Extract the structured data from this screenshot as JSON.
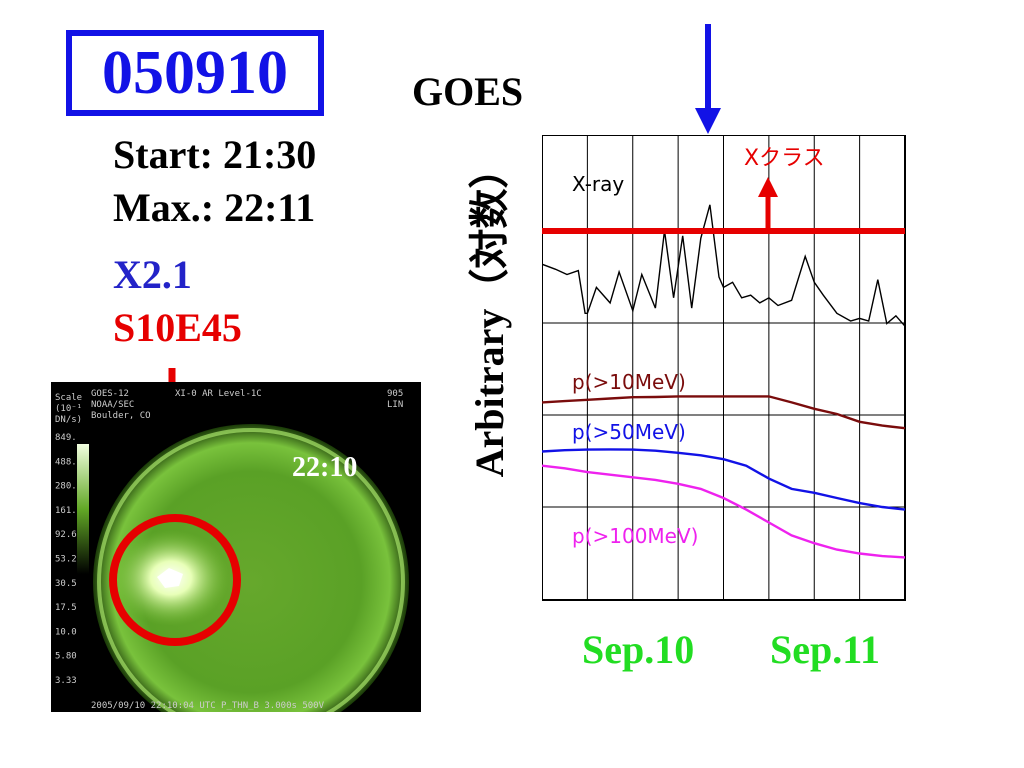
{
  "event": {
    "id": "050910",
    "start": "Start: 21:30",
    "max": "Max.: 22:11",
    "xray_class": "X2.1",
    "location": "S10E45"
  },
  "colors": {
    "blue": "#1212e6",
    "red": "#e60000",
    "green": "#22dd22",
    "darkred": "#7a0c0c",
    "magenta": "#ee22ee"
  },
  "image_panel": {
    "time_label": "22:10",
    "header_left": [
      "GOES-12",
      "NOAA/SEC",
      "Boulder, CO"
    ],
    "header_mid": "XI-0  AR     Level-1C",
    "header_right": [
      "905",
      "LIN"
    ],
    "scale_header": [
      "Scale",
      "(10⁻¹",
      "DN/s)"
    ],
    "scale_values": [
      "849.",
      "488.",
      "280.",
      "161.",
      "92.6",
      "53.2",
      "30.5",
      "17.5",
      "10.0",
      "5.80",
      "3.33"
    ],
    "footer": "2005/09/10 22:10:04 UTC  P_THN_B  3.000s  500V"
  },
  "chart_data": {
    "type": "line",
    "title": "GOES",
    "ylabel": "Arbitrary（対数）",
    "x_labels": [
      "Sep.10",
      "Sep.11"
    ],
    "x_range_days": [
      0,
      8
    ],
    "grid": true,
    "annotation": "Xクラス",
    "series": [
      {
        "name": "X-ray",
        "color": "#000000",
        "x": [
          0,
          0.3,
          0.55,
          0.8,
          0.95,
          1.0,
          1.2,
          1.5,
          1.7,
          2.0,
          2.2,
          2.5,
          2.7,
          2.9,
          3.1,
          3.3,
          3.5,
          3.7,
          3.9,
          4.0,
          4.2,
          4.4,
          4.6,
          4.8,
          5.0,
          5.2,
          5.5,
          5.8,
          6.0,
          6.2,
          6.5,
          6.8,
          7.0,
          7.2,
          7.4,
          7.6,
          7.8,
          8.0
        ],
        "y": [
          5.5,
          5.3,
          5.1,
          5.25,
          3.6,
          3.6,
          4.6,
          4.0,
          5.2,
          3.7,
          5.1,
          3.8,
          6.8,
          4.2,
          6.6,
          3.8,
          6.5,
          7.8,
          5.0,
          4.6,
          4.8,
          4.2,
          4.3,
          4.0,
          4.2,
          3.9,
          4.1,
          5.8,
          4.8,
          4.3,
          3.6,
          3.3,
          3.4,
          3.3,
          4.9,
          3.2,
          3.5,
          3.1
        ]
      },
      {
        "name": "p(>10MeV)",
        "color": "#7a0c0c",
        "x": [
          0,
          0.5,
          1.0,
          1.5,
          2.0,
          2.5,
          3.0,
          3.5,
          4.0,
          4.5,
          5.0,
          5.5,
          6.0,
          6.5,
          7.0,
          7.5,
          8.0
        ],
        "y": [
          0.15,
          0.2,
          0.25,
          0.3,
          0.35,
          0.36,
          0.38,
          0.38,
          0.38,
          0.38,
          0.38,
          0.15,
          -0.1,
          -0.3,
          -0.6,
          -0.75,
          -0.85
        ]
      },
      {
        "name": "p(>50MeV)",
        "color": "#1212e6",
        "x": [
          0,
          0.5,
          1.0,
          1.5,
          2.0,
          2.5,
          3.0,
          3.5,
          4.0,
          4.5,
          5.0,
          5.5,
          6.0,
          6.5,
          7.0,
          7.5,
          8.0
        ],
        "y": [
          -1.75,
          -1.7,
          -1.68,
          -1.67,
          -1.68,
          -1.72,
          -1.8,
          -1.9,
          -2.05,
          -2.3,
          -2.8,
          -3.2,
          -3.35,
          -3.55,
          -3.75,
          -3.9,
          -4.0
        ]
      },
      {
        "name": "p(>100MeV)",
        "color": "#ee22ee",
        "x": [
          0,
          0.5,
          1.0,
          1.5,
          2.0,
          2.5,
          3.0,
          3.5,
          4.0,
          4.5,
          5.0,
          5.5,
          6.0,
          6.5,
          7.0,
          7.5,
          8.0
        ],
        "y": [
          -2.3,
          -2.4,
          -2.55,
          -2.65,
          -2.75,
          -2.85,
          -3.0,
          -3.2,
          -3.55,
          -4.0,
          -4.5,
          -5.0,
          -5.3,
          -5.55,
          -5.7,
          -5.8,
          -5.85
        ]
      }
    ]
  }
}
